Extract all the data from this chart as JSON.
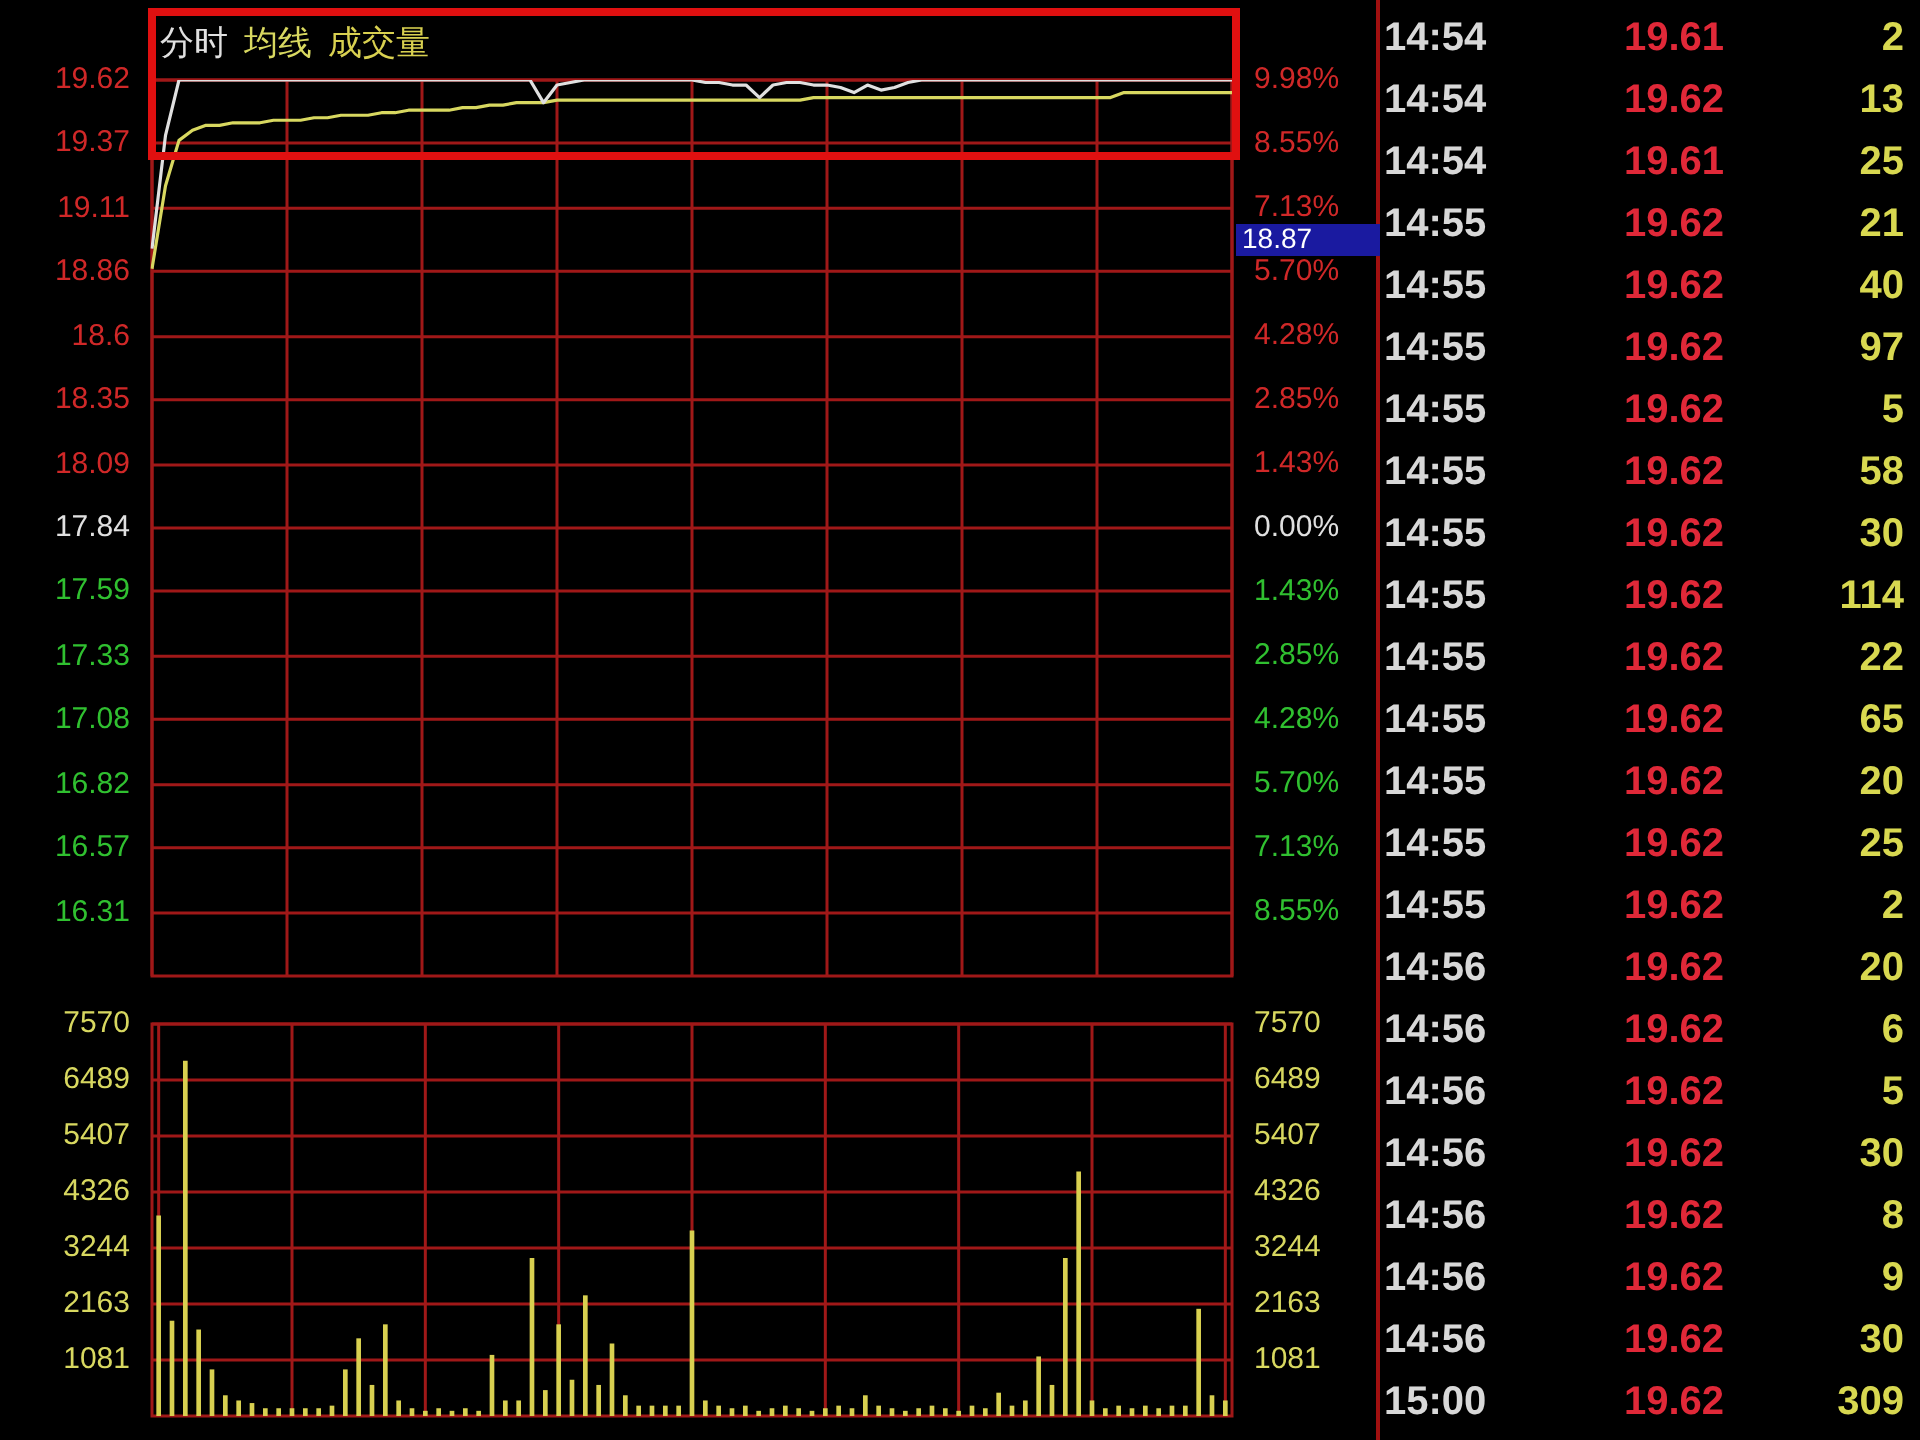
{
  "chart_data": [
    {
      "type": "line",
      "categories": [
        null,
        null,
        null,
        null,
        null,
        null,
        null,
        null,
        null,
        null,
        null,
        null,
        null,
        null,
        null,
        null,
        null,
        null,
        null,
        null,
        null,
        null,
        null,
        null,
        null,
        null,
        null,
        null,
        null,
        null,
        null,
        null,
        null,
        null,
        null,
        null,
        null,
        null,
        null,
        null,
        null,
        null,
        null,
        null,
        null,
        null,
        null,
        null,
        null,
        null,
        null,
        null,
        null,
        null,
        null,
        null,
        null,
        null,
        null,
        null,
        null,
        null,
        null,
        null,
        null,
        null,
        null,
        null,
        null,
        null,
        null,
        null,
        null,
        null,
        null,
        null,
        null,
        null,
        null,
        null,
        null
      ],
      "series": [
        {
          "name": "分时",
          "color": "#e0e0e0",
          "values": [
            18.95,
            19.4,
            19.62,
            19.62,
            19.62,
            19.62,
            19.62,
            19.62,
            19.62,
            19.62,
            19.62,
            19.62,
            19.62,
            19.62,
            19.62,
            19.62,
            19.62,
            19.62,
            19.62,
            19.62,
            19.62,
            19.62,
            19.62,
            19.62,
            19.62,
            19.62,
            19.62,
            19.62,
            19.62,
            19.53,
            19.6,
            19.61,
            19.62,
            19.62,
            19.62,
            19.62,
            19.62,
            19.62,
            19.62,
            19.62,
            19.62,
            19.61,
            19.61,
            19.6,
            19.6,
            19.55,
            19.6,
            19.61,
            19.61,
            19.6,
            19.6,
            19.59,
            19.57,
            19.6,
            19.58,
            19.59,
            19.61,
            19.62,
            19.62,
            19.62,
            19.62,
            19.62,
            19.62,
            19.62,
            19.62,
            19.62,
            19.62,
            19.62,
            19.62,
            19.62,
            19.62,
            19.62,
            19.62,
            19.62,
            19.62,
            19.62,
            19.62,
            19.62,
            19.62,
            19.62,
            19.62
          ]
        },
        {
          "name": "均线",
          "color": "#d8d860",
          "values": [
            18.87,
            19.2,
            19.38,
            19.42,
            19.44,
            19.44,
            19.45,
            19.45,
            19.45,
            19.46,
            19.46,
            19.46,
            19.47,
            19.47,
            19.48,
            19.48,
            19.48,
            19.49,
            19.49,
            19.5,
            19.5,
            19.5,
            19.5,
            19.51,
            19.51,
            19.52,
            19.52,
            19.53,
            19.53,
            19.53,
            19.54,
            19.54,
            19.54,
            19.54,
            19.54,
            19.54,
            19.54,
            19.54,
            19.54,
            19.54,
            19.54,
            19.54,
            19.54,
            19.54,
            19.54,
            19.54,
            19.54,
            19.54,
            19.54,
            19.55,
            19.55,
            19.55,
            19.55,
            19.55,
            19.55,
            19.55,
            19.55,
            19.55,
            19.55,
            19.55,
            19.55,
            19.55,
            19.55,
            19.55,
            19.55,
            19.55,
            19.55,
            19.55,
            19.55,
            19.55,
            19.55,
            19.55,
            19.57,
            19.57,
            19.57,
            19.57,
            19.57,
            19.57,
            19.57,
            19.57,
            19.57
          ]
        }
      ],
      "ylim": [
        16.06,
        19.62
      ],
      "yticks": [
        19.62,
        19.37,
        19.11,
        18.86,
        18.6,
        18.35,
        18.09,
        17.84,
        17.59,
        17.33,
        17.08,
        16.82,
        16.57,
        16.31
      ],
      "y2lim": [
        -9.98,
        9.98
      ],
      "y2ticks": [
        {
          "value": 9.98,
          "label": "9.98%"
        },
        {
          "value": 8.55,
          "label": "8.55%"
        },
        {
          "value": 7.13,
          "label": "7.13%"
        },
        {
          "value": 5.7,
          "label": "5.70%"
        },
        {
          "value": 4.28,
          "label": "4.28%"
        },
        {
          "value": 2.85,
          "label": "2.85%"
        },
        {
          "value": 1.43,
          "label": "1.43%"
        },
        {
          "value": 0,
          "label": "0.00%"
        },
        {
          "value": -1.43,
          "label": "1.43%"
        },
        {
          "value": -2.85,
          "label": "2.85%"
        },
        {
          "value": -4.28,
          "label": "4.28%"
        },
        {
          "value": -5.7,
          "label": "5.70%"
        },
        {
          "value": -7.13,
          "label": "7.13%"
        },
        {
          "value": -8.55,
          "label": "8.55%"
        }
      ],
      "grid": true,
      "legend": "top left",
      "annotations": [
        "18.87"
      ]
    },
    {
      "type": "bar",
      "categories": [
        null,
        null,
        null,
        null,
        null,
        null,
        null,
        null,
        null,
        null,
        null,
        null,
        null,
        null,
        null,
        null,
        null,
        null,
        null,
        null,
        null,
        null,
        null,
        null,
        null,
        null,
        null,
        null,
        null,
        null,
        null,
        null,
        null,
        null,
        null,
        null,
        null,
        null,
        null,
        null,
        null,
        null,
        null,
        null,
        null,
        null,
        null,
        null,
        null,
        null,
        null,
        null,
        null,
        null,
        null,
        null,
        null,
        null,
        null,
        null,
        null,
        null,
        null,
        null,
        null,
        null,
        null,
        null,
        null,
        null,
        null,
        null,
        null,
        null,
        null,
        null,
        null,
        null,
        null,
        null,
        null
      ],
      "series": [
        {
          "name": "成交量",
          "color": "#d8d050",
          "values": [
            3870,
            1840,
            6860,
            1670,
            900,
            400,
            300,
            250,
            150,
            150,
            150,
            150,
            150,
            200,
            900,
            1500,
            600,
            1770,
            300,
            150,
            100,
            150,
            100,
            150,
            100,
            1180,
            300,
            300,
            3050,
            500,
            1770,
            700,
            2330,
            600,
            1400,
            400,
            200,
            200,
            200,
            200,
            3580,
            300,
            200,
            150,
            200,
            100,
            150,
            200,
            150,
            100,
            150,
            200,
            150,
            400,
            200,
            150,
            100,
            150,
            200,
            150,
            100,
            200,
            150,
            450,
            200,
            300,
            1150,
            600,
            3050,
            4720,
            300,
            150,
            200,
            150,
            200,
            150,
            200,
            200,
            2070,
            400,
            300
          ]
        }
      ],
      "ylim": [
        0,
        7570
      ],
      "yticks": [
        1081,
        2163,
        3244,
        4326,
        5407,
        6489,
        7570
      ],
      "y2lim": [
        0,
        7570
      ],
      "y2ticks": [
        1081,
        2163,
        3244,
        4326,
        5407,
        6489,
        7570
      ],
      "grid": true,
      "legend": "top left"
    },
    {
      "type": "other",
      "annotations": [
        "14:54",
        "19.61",
        "2",
        "14:54",
        "19.62",
        "13",
        "14:54",
        "19.61",
        "25",
        "14:55",
        "19.62",
        "21",
        "14:55",
        "19.62",
        "40",
        "14:55",
        "19.62",
        "97",
        "14:55",
        "19.62",
        "5",
        "14:55",
        "19.62",
        "58",
        "14:55",
        "19.62",
        "30",
        "14:55",
        "19.62",
        "114",
        "14:55",
        "19.62",
        "22",
        "14:55",
        "19.62",
        "65",
        "14:55",
        "19.62",
        "20",
        "14:55",
        "19.62",
        "25",
        "14:55",
        "19.62",
        "2",
        "14:56",
        "19.62",
        "20",
        "14:56",
        "19.62",
        "6",
        "14:56",
        "19.62",
        "5",
        "14:56",
        "19.62",
        "30",
        "14:56",
        "19.62",
        "8",
        "14:56",
        "19.62",
        "9",
        "14:56",
        "19.62",
        "30",
        "15:00",
        "19.62",
        "309"
      ]
    }
  ]
}
